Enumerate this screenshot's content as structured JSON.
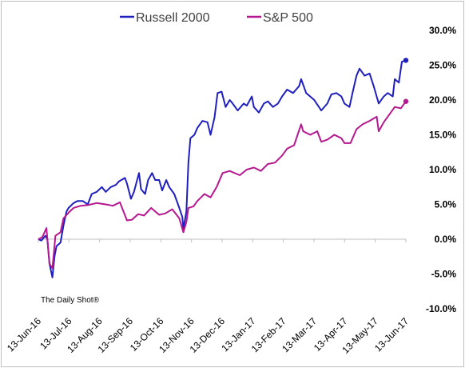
{
  "chart_data": {
    "type": "line",
    "source_note": "The Daily Shot®",
    "y_axis": {
      "ticks": [
        "30.0%",
        "25.0%",
        "20.0%",
        "15.0%",
        "10.0%",
        "5.0%",
        "0.0%",
        "-5.0%",
        "-10.0%"
      ],
      "range": [
        -10,
        30
      ],
      "position": "right"
    },
    "x_axis": {
      "ticks": [
        "13-Jun-16",
        "13-Jul-16",
        "13-Aug-16",
        "13-Sep-16",
        "13-Oct-16",
        "13-Nov-16",
        "13-Dec-16",
        "13-Jan-17",
        "13-Feb-17",
        "13-Mar-17",
        "13-Apr-17",
        "13-May-17",
        "13-Jun-17"
      ],
      "range": [
        "2016-06-13",
        "2017-06-13"
      ]
    },
    "legend": {
      "placement": "top"
    },
    "series": [
      {
        "name": "Russell 2000",
        "color": "#1f1fbf",
        "points": [
          [
            "2016-06-13",
            0.0
          ],
          [
            "2016-06-16",
            -0.2
          ],
          [
            "2016-06-20",
            0.5
          ],
          [
            "2016-06-22",
            0.0
          ],
          [
            "2016-06-24",
            -3.5
          ],
          [
            "2016-06-27",
            -5.5
          ],
          [
            "2016-06-29",
            -2.5
          ],
          [
            "2016-07-01",
            -1.0
          ],
          [
            "2016-07-05",
            -0.5
          ],
          [
            "2016-07-08",
            2.0
          ],
          [
            "2016-07-11",
            4.0
          ],
          [
            "2016-07-13",
            4.5
          ],
          [
            "2016-07-18",
            5.2
          ],
          [
            "2016-07-22",
            5.5
          ],
          [
            "2016-07-27",
            5.5
          ],
          [
            "2016-08-01",
            5.0
          ],
          [
            "2016-08-05",
            6.5
          ],
          [
            "2016-08-10",
            6.8
          ],
          [
            "2016-08-15",
            7.5
          ],
          [
            "2016-08-19",
            6.8
          ],
          [
            "2016-08-24",
            7.5
          ],
          [
            "2016-08-29",
            7.8
          ],
          [
            "2016-09-01",
            8.3
          ],
          [
            "2016-09-07",
            8.8
          ],
          [
            "2016-09-09",
            8.0
          ],
          [
            "2016-09-13",
            5.8
          ],
          [
            "2016-09-16",
            6.8
          ],
          [
            "2016-09-21",
            9.5
          ],
          [
            "2016-09-23",
            7.2
          ],
          [
            "2016-09-27",
            6.5
          ],
          [
            "2016-09-30",
            8.5
          ],
          [
            "2016-10-04",
            9.5
          ],
          [
            "2016-10-07",
            8.5
          ],
          [
            "2016-10-11",
            8.5
          ],
          [
            "2016-10-14",
            7.0
          ],
          [
            "2016-10-18",
            8.5
          ],
          [
            "2016-10-21",
            7.5
          ],
          [
            "2016-10-26",
            6.5
          ],
          [
            "2016-10-31",
            4.5
          ],
          [
            "2016-11-03",
            3.2
          ],
          [
            "2016-11-04",
            1.5
          ],
          [
            "2016-11-07",
            4.0
          ],
          [
            "2016-11-09",
            11.0
          ],
          [
            "2016-11-11",
            14.5
          ],
          [
            "2016-11-15",
            15.0
          ],
          [
            "2016-11-18",
            16.0
          ],
          [
            "2016-11-23",
            17.0
          ],
          [
            "2016-11-28",
            16.8
          ],
          [
            "2016-12-01",
            15.0
          ],
          [
            "2016-12-05",
            17.5
          ],
          [
            "2016-12-08",
            21.0
          ],
          [
            "2016-12-12",
            21.2
          ],
          [
            "2016-12-16",
            19.0
          ],
          [
            "2016-12-20",
            20.0
          ],
          [
            "2016-12-23",
            19.5
          ],
          [
            "2016-12-28",
            18.5
          ],
          [
            "2017-01-03",
            19.5
          ],
          [
            "2017-01-06",
            19.2
          ],
          [
            "2017-01-11",
            20.5
          ],
          [
            "2017-01-13",
            19.0
          ],
          [
            "2017-01-18",
            18.2
          ],
          [
            "2017-01-23",
            19.5
          ],
          [
            "2017-01-27",
            19.8
          ],
          [
            "2017-02-01",
            19.0
          ],
          [
            "2017-02-06",
            19.5
          ],
          [
            "2017-02-10",
            20.5
          ],
          [
            "2017-02-15",
            21.5
          ],
          [
            "2017-02-21",
            21.0
          ],
          [
            "2017-02-27",
            22.0
          ],
          [
            "2017-03-01",
            23.0
          ],
          [
            "2017-03-06",
            21.0
          ],
          [
            "2017-03-10",
            20.5
          ],
          [
            "2017-03-14",
            20.0
          ],
          [
            "2017-03-21",
            18.5
          ],
          [
            "2017-03-27",
            19.5
          ],
          [
            "2017-03-31",
            20.8
          ],
          [
            "2017-04-05",
            21.0
          ],
          [
            "2017-04-10",
            20.5
          ],
          [
            "2017-04-13",
            19.5
          ],
          [
            "2017-04-18",
            19.0
          ],
          [
            "2017-04-21",
            21.0
          ],
          [
            "2017-04-25",
            23.5
          ],
          [
            "2017-04-28",
            24.5
          ],
          [
            "2017-05-03",
            23.5
          ],
          [
            "2017-05-08",
            23.8
          ],
          [
            "2017-05-12",
            22.0
          ],
          [
            "2017-05-17",
            19.5
          ],
          [
            "2017-05-22",
            20.5
          ],
          [
            "2017-05-26",
            21.0
          ],
          [
            "2017-05-31",
            20.5
          ],
          [
            "2017-06-02",
            23.0
          ],
          [
            "2017-06-06",
            22.5
          ],
          [
            "2017-06-09",
            25.5
          ],
          [
            "2017-06-13",
            25.7
          ]
        ]
      },
      {
        "name": "S&P 500",
        "color": "#b5178f",
        "points": [
          [
            "2016-06-13",
            0.0
          ],
          [
            "2016-06-17",
            0.3
          ],
          [
            "2016-06-21",
            1.6
          ],
          [
            "2016-06-24",
            -3.5
          ],
          [
            "2016-06-27",
            -4.2
          ],
          [
            "2016-06-30",
            0.5
          ],
          [
            "2016-07-05",
            1.0
          ],
          [
            "2016-07-08",
            3.0
          ],
          [
            "2016-07-13",
            3.8
          ],
          [
            "2016-07-18",
            4.5
          ],
          [
            "2016-07-25",
            4.8
          ],
          [
            "2016-08-01",
            4.9
          ],
          [
            "2016-08-10",
            5.2
          ],
          [
            "2016-08-19",
            5.0
          ],
          [
            "2016-08-26",
            4.8
          ],
          [
            "2016-09-02",
            5.3
          ],
          [
            "2016-09-09",
            2.7
          ],
          [
            "2016-09-14",
            2.8
          ],
          [
            "2016-09-20",
            3.6
          ],
          [
            "2016-09-26",
            3.4
          ],
          [
            "2016-10-03",
            4.5
          ],
          [
            "2016-10-07",
            4.0
          ],
          [
            "2016-10-11",
            3.5
          ],
          [
            "2016-10-17",
            3.7
          ],
          [
            "2016-10-24",
            4.3
          ],
          [
            "2016-10-31",
            3.0
          ],
          [
            "2016-11-04",
            1.0
          ],
          [
            "2016-11-07",
            2.5
          ],
          [
            "2016-11-09",
            4.5
          ],
          [
            "2016-11-14",
            4.7
          ],
          [
            "2016-11-18",
            5.5
          ],
          [
            "2016-11-25",
            6.5
          ],
          [
            "2016-12-01",
            6.0
          ],
          [
            "2016-12-07",
            7.5
          ],
          [
            "2016-12-13",
            9.5
          ],
          [
            "2016-12-20",
            9.8
          ],
          [
            "2016-12-30",
            9.2
          ],
          [
            "2017-01-06",
            10.0
          ],
          [
            "2017-01-13",
            10.3
          ],
          [
            "2017-01-20",
            9.8
          ],
          [
            "2017-01-27",
            10.8
          ],
          [
            "2017-02-03",
            11.0
          ],
          [
            "2017-02-10",
            12.0
          ],
          [
            "2017-02-15",
            13.0
          ],
          [
            "2017-02-22",
            13.5
          ],
          [
            "2017-03-01",
            16.5
          ],
          [
            "2017-03-03",
            15.5
          ],
          [
            "2017-03-10",
            15.0
          ],
          [
            "2017-03-17",
            15.5
          ],
          [
            "2017-03-21",
            14.0
          ],
          [
            "2017-03-27",
            14.3
          ],
          [
            "2017-04-03",
            15.0
          ],
          [
            "2017-04-10",
            14.5
          ],
          [
            "2017-04-13",
            13.8
          ],
          [
            "2017-04-19",
            13.8
          ],
          [
            "2017-04-25",
            15.8
          ],
          [
            "2017-05-01",
            16.5
          ],
          [
            "2017-05-08",
            17.0
          ],
          [
            "2017-05-15",
            17.6
          ],
          [
            "2017-05-17",
            15.5
          ],
          [
            "2017-05-22",
            16.8
          ],
          [
            "2017-05-26",
            17.6
          ],
          [
            "2017-06-02",
            19.0
          ],
          [
            "2017-06-08",
            18.8
          ],
          [
            "2017-06-13",
            19.8
          ]
        ]
      }
    ]
  }
}
